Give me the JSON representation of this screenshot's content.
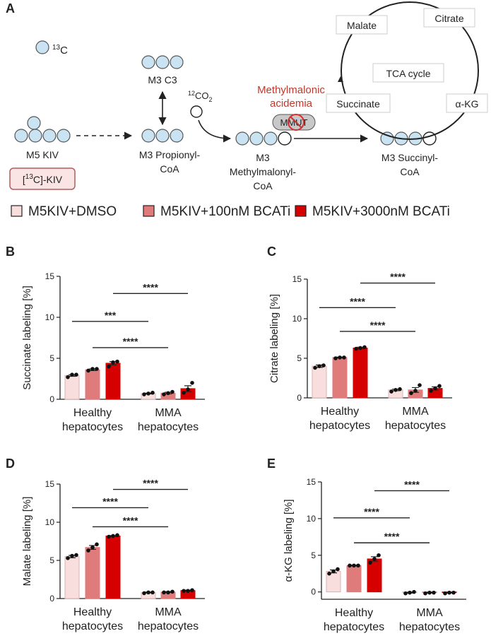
{
  "diagram": {
    "panel": "A",
    "isotope": {
      "superscript": "13",
      "text": "C"
    },
    "co2": {
      "superscript": "12",
      "text": "CO",
      "subscript": "2"
    },
    "m3_c3": "M3 C3",
    "m5_kiv": "M5 KIV",
    "kiv_box": {
      "prefix": "[",
      "superscript": "13",
      "text": "C]-KIV"
    },
    "propionyl": [
      "M3 Propionyl-",
      "CoA"
    ],
    "methylmalonyl": [
      "M3",
      "Methylmalonyl-",
      "CoA"
    ],
    "succinyl": [
      "M3 Succinyl-",
      "CoA"
    ],
    "disease": [
      "Methylmalonic",
      "acidemia"
    ],
    "enzyme": "MMUT",
    "tca": {
      "center": "TCA cycle",
      "malate": "Malate",
      "citrate": "Citrate",
      "succinate": "Succinate",
      "akg": "α-KG"
    }
  },
  "legend": [
    {
      "name": "M5KIV+DMSO",
      "color": "#f9dede"
    },
    {
      "name": "M5KIV+100nM BCATi",
      "color": "#df7b7b"
    },
    {
      "name": "M5KIV+3000nM BCATi",
      "color": "#d60000"
    }
  ],
  "chart_data": [
    {
      "type": "bar",
      "panel": "B",
      "ylabel": "Succinate labeling [%]",
      "categories": [
        [
          "Healthy",
          "hepatocytes"
        ],
        [
          "MMA",
          "hepatocytes"
        ]
      ],
      "ylim": [
        0,
        15
      ],
      "yticks": [
        0,
        5,
        10,
        15
      ],
      "series": [
        {
          "values": [
            2.9,
            0.7
          ],
          "errors": [
            0.1,
            0.05
          ],
          "points": [
            [
              2.7,
              3.0,
              3.0
            ],
            [
              0.6,
              0.7,
              0.8
            ]
          ],
          "significance": {
            "label": "***",
            "y": 9.5
          }
        },
        {
          "values": [
            3.6,
            0.75
          ],
          "errors": [
            0.1,
            0.1
          ],
          "points": [
            [
              3.5,
              3.7,
              3.7
            ],
            [
              0.6,
              0.75,
              0.9
            ]
          ],
          "significance": {
            "label": "****",
            "y": 6.3
          }
        },
        {
          "values": [
            4.4,
            1.3
          ],
          "errors": [
            0.2,
            0.35
          ],
          "points": [
            [
              4.0,
              4.5,
              4.6
            ],
            [
              0.8,
              1.2,
              2.0
            ]
          ],
          "significance": {
            "label": "****",
            "y": 12.9
          }
        }
      ]
    },
    {
      "type": "bar",
      "panel": "C",
      "ylabel": "Citrate labeling [%]",
      "categories": [
        [
          "Healthy",
          "hepatocytes"
        ],
        [
          "MMA",
          "hepatocytes"
        ]
      ],
      "ylim": [
        0,
        15
      ],
      "yticks": [
        0,
        5,
        10,
        15
      ],
      "series": [
        {
          "values": [
            4.0,
            1.0
          ],
          "errors": [
            0.15,
            0.1
          ],
          "points": [
            [
              3.8,
              4.0,
              4.1
            ],
            [
              0.8,
              1.0,
              1.1
            ]
          ],
          "significance": {
            "label": "****",
            "y": 11.4
          }
        },
        {
          "values": [
            5.1,
            1.0
          ],
          "errors": [
            0.05,
            0.3
          ],
          "points": [
            [
              5.0,
              5.1,
              5.1
            ],
            [
              0.6,
              0.9,
              1.6
            ]
          ],
          "significance": {
            "label": "****",
            "y": 8.4
          }
        },
        {
          "values": [
            6.3,
            1.2
          ],
          "errors": [
            0.1,
            0.2
          ],
          "points": [
            [
              6.2,
              6.3,
              6.4
            ],
            [
              0.9,
              1.2,
              1.5
            ]
          ],
          "significance": {
            "label": "****",
            "y": 14.5
          }
        }
      ]
    },
    {
      "type": "bar",
      "panel": "D",
      "ylabel": "Malate labeling [%]",
      "categories": [
        [
          "Healthy",
          "hepatocytes"
        ],
        [
          "MMA",
          "hepatocytes"
        ]
      ],
      "ylim": [
        0,
        15
      ],
      "yticks": [
        0,
        5,
        10,
        15
      ],
      "series": [
        {
          "values": [
            5.5,
            0.8
          ],
          "errors": [
            0.15,
            0.05
          ],
          "points": [
            [
              5.3,
              5.6,
              5.7
            ],
            [
              0.7,
              0.8,
              0.8
            ]
          ],
          "significance": {
            "label": "****",
            "y": 11.9
          }
        },
        {
          "values": [
            6.7,
            0.85
          ],
          "errors": [
            0.25,
            0.05
          ],
          "points": [
            [
              6.3,
              6.7,
              7.1
            ],
            [
              0.8,
              0.8,
              0.9
            ]
          ],
          "significance": {
            "label": "****",
            "y": 9.4
          }
        },
        {
          "values": [
            8.2,
            1.05
          ],
          "errors": [
            0.05,
            0.05
          ],
          "points": [
            [
              8.1,
              8.2,
              8.3
            ],
            [
              1.0,
              1.0,
              1.1
            ]
          ],
          "significance": {
            "label": "****",
            "y": 14.3
          }
        }
      ]
    },
    {
      "type": "bar",
      "panel": "E",
      "ylabel": "α-KG labeling [%]",
      "categories": [
        [
          "Healthy",
          "hepatocytes"
        ],
        [
          "MMA",
          "hepatocytes"
        ]
      ],
      "ylim": [
        -1,
        15
      ],
      "yticks": [
        0,
        5,
        10,
        15
      ],
      "series": [
        {
          "values": [
            2.8,
            -0.1
          ],
          "errors": [
            0.2,
            0.05
          ],
          "points": [
            [
              2.5,
              2.8,
              3.1
            ],
            [
              -0.2,
              -0.1,
              0
            ]
          ],
          "significance": {
            "label": "****",
            "y": 10.1
          }
        },
        {
          "values": [
            3.6,
            -0.1
          ],
          "errors": [
            0.05,
            0.05
          ],
          "points": [
            [
              3.6,
              3.6,
              3.6
            ],
            [
              -0.2,
              -0.1,
              -0.1
            ]
          ],
          "significance": {
            "label": "****",
            "y": 6.7
          }
        },
        {
          "values": [
            4.5,
            -0.1
          ],
          "errors": [
            0.3,
            0.05
          ],
          "points": [
            [
              4.0,
              4.5,
              5.0
            ],
            [
              -0.2,
              -0.1,
              -0.1
            ]
          ],
          "significance": {
            "label": "****",
            "y": 13.8
          }
        }
      ]
    }
  ]
}
